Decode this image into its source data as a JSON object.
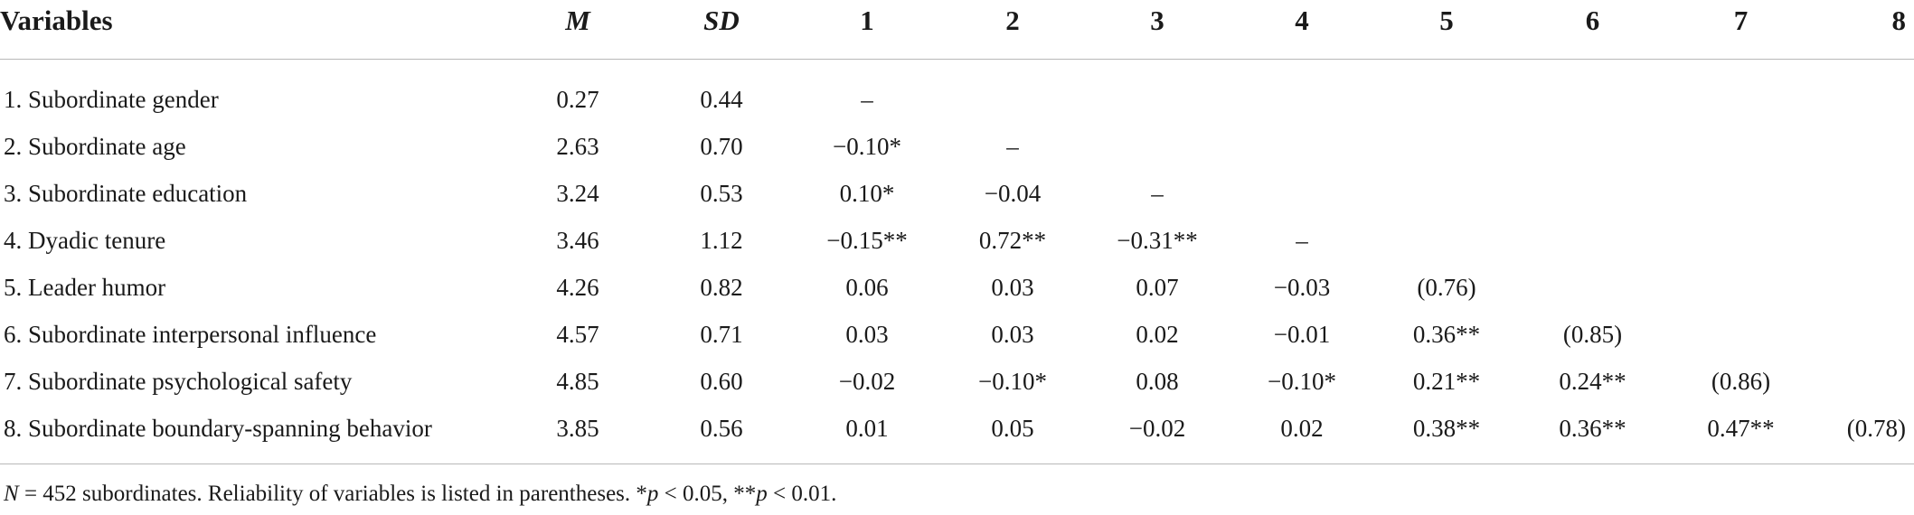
{
  "table": {
    "headers": [
      "Variables",
      "M",
      "SD",
      "1",
      "2",
      "3",
      "4",
      "5",
      "6",
      "7",
      "8"
    ],
    "rows": [
      [
        "1. Subordinate gender",
        "0.27",
        "0.44",
        "–",
        "",
        "",
        "",
        "",
        "",
        "",
        ""
      ],
      [
        "2. Subordinate age",
        "2.63",
        "0.70",
        "−0.10*",
        "–",
        "",
        "",
        "",
        "",
        "",
        ""
      ],
      [
        "3. Subordinate education",
        "3.24",
        "0.53",
        "0.10*",
        "−0.04",
        "–",
        "",
        "",
        "",
        "",
        ""
      ],
      [
        "4. Dyadic tenure",
        "3.46",
        "1.12",
        "−0.15**",
        "0.72**",
        "−0.31**",
        "–",
        "",
        "",
        "",
        ""
      ],
      [
        "5. Leader humor",
        "4.26",
        "0.82",
        "0.06",
        "0.03",
        "0.07",
        "−0.03",
        "(0.76)",
        "",
        "",
        ""
      ],
      [
        "6. Subordinate interpersonal influence",
        "4.57",
        "0.71",
        "0.03",
        "0.03",
        "0.02",
        "−0.01",
        "0.36**",
        "(0.85)",
        "",
        ""
      ],
      [
        "7. Subordinate psychological safety",
        "4.85",
        "0.60",
        "−0.02",
        "−0.10*",
        "0.08",
        "−0.10*",
        "0.21**",
        "0.24**",
        "(0.86)",
        ""
      ],
      [
        "8. Subordinate boundary-spanning behavior",
        "3.85",
        "0.56",
        "0.01",
        "0.05",
        "−0.02",
        "0.02",
        "0.38**",
        "0.36**",
        "0.47**",
        "(0.78)"
      ]
    ]
  },
  "note": {
    "n_label": "N",
    "n_text": " = 452 subordinates. Reliability of variables is listed in parentheses. *",
    "p1_label": "p",
    "p1_text": " < 0.05, **",
    "p2_label": "p",
    "p2_text": " < 0.01."
  }
}
